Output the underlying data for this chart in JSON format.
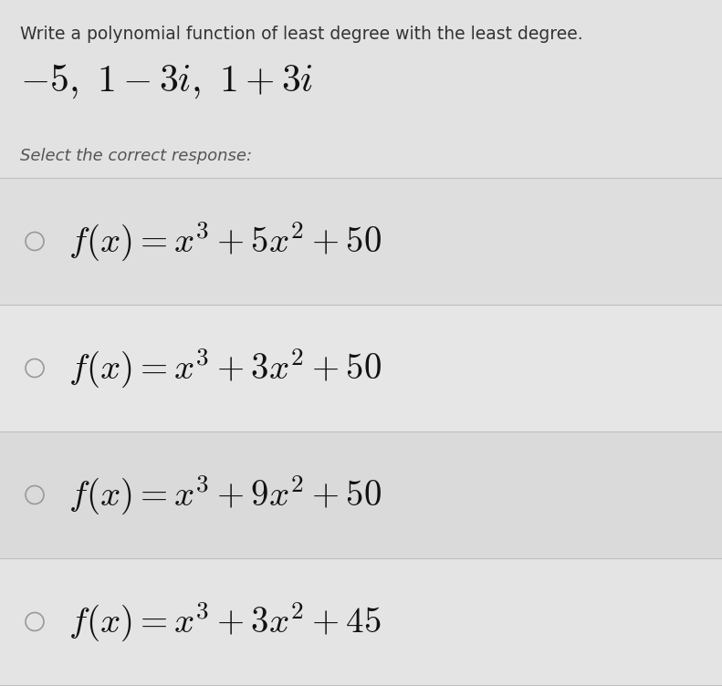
{
  "background_color": "#d8d8d8",
  "row_colors": [
    "#dcdcdc",
    "#e4e4e4",
    "#dcdcdc",
    "#e4e4e4"
  ],
  "top_section_color": "#e0e0e0",
  "title_text": "Write a polynomial function of least degree with the least degree.",
  "roots_text": "$-5,\\ 1-3i,\\ 1+3i$",
  "select_text": "Select the correct response:",
  "options": [
    "$f(x) = x^3 + 5x^2 + 50$",
    "$f(x) = x^3 + 3x^2 + 50$",
    "$f(x) = x^3 + 9x^2 + 50$",
    "$f(x) = x^3 + 3x^2 + 45$"
  ],
  "title_fontsize": 13.5,
  "roots_fontsize": 30,
  "select_fontsize": 13,
  "option_fontsize": 28,
  "title_color": "#333333",
  "roots_color": "#111111",
  "select_color": "#555555",
  "option_color": "#111111",
  "circle_color": "#999999",
  "divider_color": "#bbbbbb",
  "figsize": [
    7.91,
    7.52
  ],
  "dpi": 100
}
